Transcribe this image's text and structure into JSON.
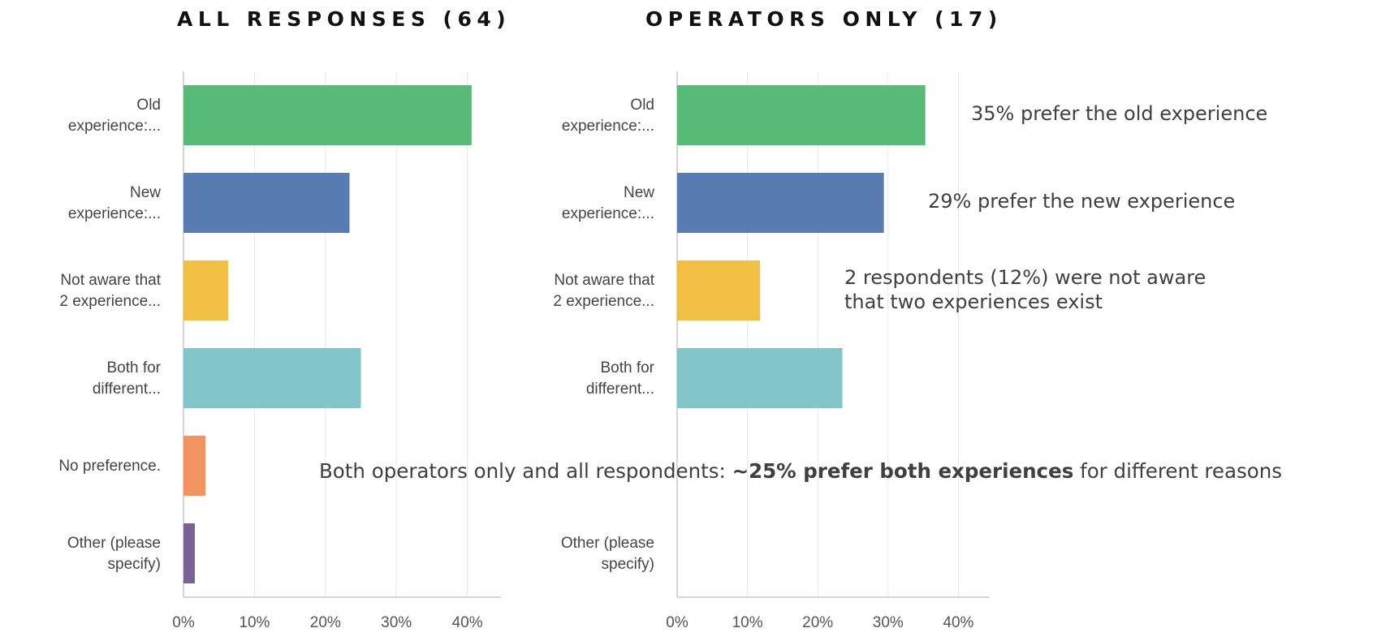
{
  "chart_data": [
    {
      "type": "bar",
      "orientation": "horizontal",
      "title": "ALL RESPONSES (64)",
      "categories": [
        [
          "Old",
          "experience:..."
        ],
        [
          "New",
          "experience:..."
        ],
        [
          "Not aware that",
          "2 experience..."
        ],
        [
          "Both for",
          "different..."
        ],
        [
          "No preference."
        ],
        [
          "Other (please",
          "specify)"
        ]
      ],
      "values": [
        40.6,
        23.4,
        6.3,
        25.0,
        3.1,
        1.6
      ],
      "colors": [
        "#57bb77",
        "#587bb2",
        "#f0bf43",
        "#82c6ca",
        "#f29362",
        "#7b6296"
      ],
      "xlim": [
        0,
        45
      ],
      "xticks": [
        0,
        10,
        20,
        30,
        40
      ],
      "tick_labels": [
        "0%",
        "10%",
        "20%",
        "30%",
        "40%"
      ],
      "grid": true
    },
    {
      "type": "bar",
      "orientation": "horizontal",
      "title": "OPERATORS ONLY (17)",
      "categories": [
        [
          "Old",
          "experience:..."
        ],
        [
          "New",
          "experience:..."
        ],
        [
          "Not aware that",
          "2 experience..."
        ],
        [
          "Both for",
          "different..."
        ],
        [],
        [
          "Other (please",
          "specify)"
        ]
      ],
      "values": [
        35.3,
        29.4,
        11.8,
        23.5,
        0,
        0
      ],
      "colors": [
        "#57bb77",
        "#587bb2",
        "#f0bf43",
        "#82c6ca",
        "#f29362",
        "#7b6296"
      ],
      "xlim": [
        0,
        44
      ],
      "xticks": [
        0,
        10,
        20,
        30,
        40
      ],
      "tick_labels": [
        "0%",
        "10%",
        "20%",
        "30%",
        "40%"
      ],
      "grid": true
    }
  ],
  "annotations": [
    [
      "35% prefer the old experience"
    ],
    [
      "29% prefer the new experience"
    ],
    [
      "2 respondents (12%) were not aware",
      "that two experiences exist"
    ],
    [
      "Both operators only and all respondents: ",
      "~25% prefer both experiences",
      " for different reasons"
    ]
  ]
}
